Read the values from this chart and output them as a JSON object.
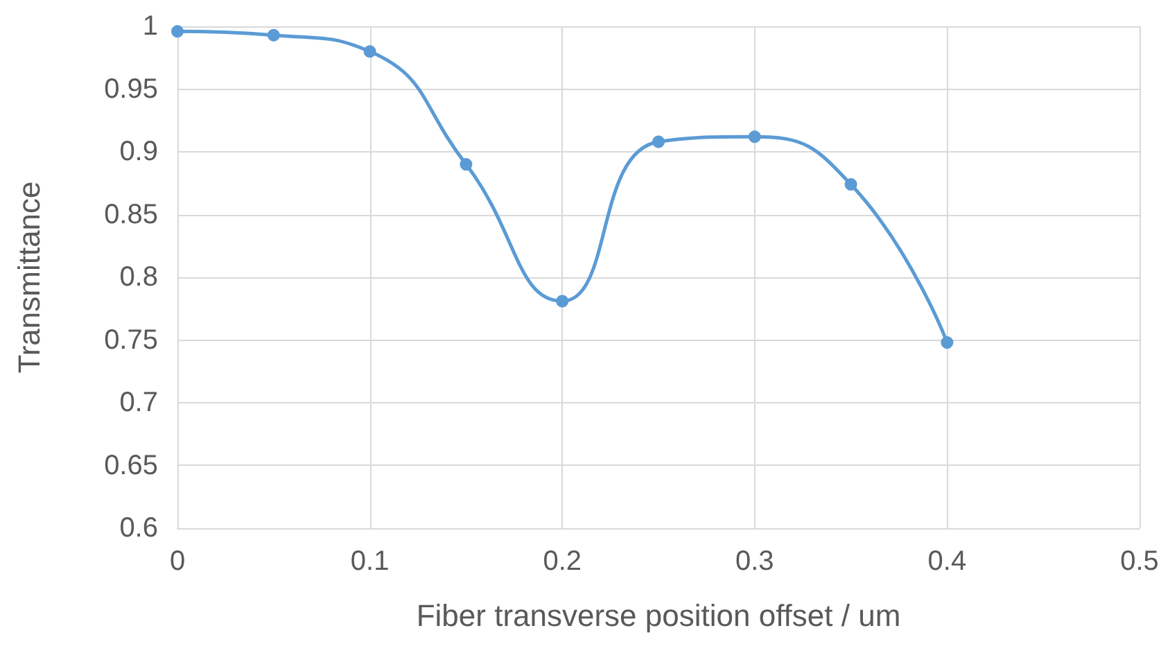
{
  "chart_data": {
    "type": "line",
    "xlabel": "Fiber transverse position offset / um",
    "ylabel": "Transmittance",
    "x": [
      0,
      0.05,
      0.1,
      0.15,
      0.2,
      0.25,
      0.3,
      0.35,
      0.4
    ],
    "series": [
      {
        "color": "#5b9bd5",
        "values": [
          0.996,
          0.993,
          0.98,
          0.89,
          0.781,
          0.908,
          0.912,
          0.874,
          0.748
        ]
      }
    ],
    "xlim": [
      0,
      0.5
    ],
    "xticks": [
      0,
      0.1,
      0.2,
      0.3,
      0.4,
      0.5
    ],
    "ylim": [
      0.6,
      1
    ],
    "yticks": [
      0.6,
      0.65,
      0.7,
      0.75,
      0.8,
      0.85,
      0.9,
      0.95,
      1
    ],
    "grid": true,
    "marker": "circle",
    "line_style": "solid"
  }
}
